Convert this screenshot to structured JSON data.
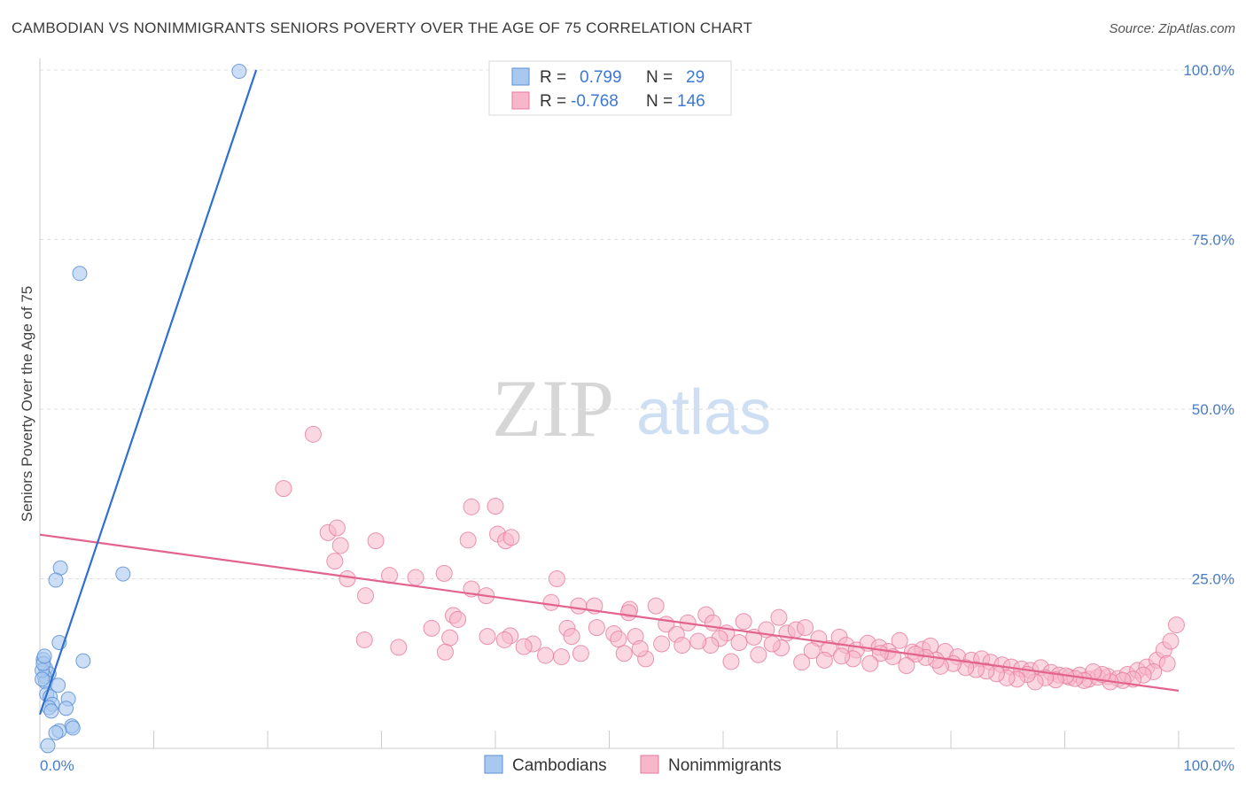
{
  "title": "CAMBODIAN VS NONIMMIGRANTS SENIORS POVERTY OVER THE AGE OF 75 CORRELATION CHART",
  "source": "Source: ZipAtlas.com",
  "watermark": {
    "part1": "ZIP",
    "part2": "atlas"
  },
  "colors": {
    "cambodian_fill": "#a9c8ef",
    "cambodian_stroke": "#5b8fd6",
    "cambodian_line": "#2f6fd0",
    "nonimm_fill": "#f7b6ca",
    "nonimm_stroke": "#e67a9e",
    "nonimm_line": "#e2638e",
    "tick": "#4a7cc4",
    "grid": "#dddddd"
  },
  "legend": {
    "r_label": "R =",
    "n_label": "N =",
    "rows": [
      {
        "r": "0.799",
        "n": "29"
      },
      {
        "r": "-0.768",
        "n": "146"
      }
    ]
  },
  "chart_data": {
    "type": "scatter",
    "title": "CAMBODIAN VS NONIMMIGRANTS SENIORS POVERTY OVER THE AGE OF 75 CORRELATION CHART",
    "xlabel": "",
    "ylabel": "Seniors Poverty Over the Age of 75",
    "xlim": [
      0,
      100
    ],
    "ylim": [
      0,
      100
    ],
    "x_tick_labels": [
      "0.0%",
      "100.0%"
    ],
    "y_tick_labels": [
      "100.0%",
      "75.0%",
      "50.0%",
      "25.0%"
    ],
    "y_tick_values": [
      100,
      75,
      50,
      25
    ],
    "legend_placement": "top-center",
    "series": [
      {
        "name": "Cambodians",
        "r": 0.799,
        "n": 29,
        "trend": {
          "x0": 0.0,
          "y0": 5.0,
          "x1": 19.0,
          "y1": 100.0
        },
        "points": [
          [
            17.5,
            99.8
          ],
          [
            3.5,
            70.0
          ],
          [
            1.8,
            26.6
          ],
          [
            1.4,
            24.8
          ],
          [
            7.3,
            25.7
          ],
          [
            1.7,
            15.6
          ],
          [
            3.8,
            12.9
          ],
          [
            0.3,
            13.1
          ],
          [
            0.5,
            11.8
          ],
          [
            0.8,
            11.0
          ],
          [
            0.4,
            10.6
          ],
          [
            0.5,
            9.8
          ],
          [
            1.6,
            9.3
          ],
          [
            0.6,
            8.0
          ],
          [
            0.9,
            7.6
          ],
          [
            1.1,
            6.5
          ],
          [
            2.5,
            7.3
          ],
          [
            0.8,
            6.0
          ],
          [
            1.0,
            5.5
          ],
          [
            2.3,
            5.9
          ],
          [
            2.8,
            3.3
          ],
          [
            2.9,
            3.0
          ],
          [
            1.7,
            2.6
          ],
          [
            1.4,
            2.3
          ],
          [
            0.7,
            0.4
          ],
          [
            0.2,
            11.5
          ],
          [
            0.3,
            12.5
          ],
          [
            0.2,
            10.2
          ],
          [
            0.4,
            13.6
          ]
        ]
      },
      {
        "name": "Nonimmigrants",
        "r": -0.768,
        "n": 146,
        "trend": {
          "x0": 0.0,
          "y0": 31.5,
          "x1": 100.0,
          "y1": 8.5
        },
        "points": [
          [
            24.0,
            46.3
          ],
          [
            21.4,
            38.3
          ],
          [
            37.9,
            35.6
          ],
          [
            40.0,
            35.7
          ],
          [
            25.3,
            31.8
          ],
          [
            26.1,
            32.5
          ],
          [
            26.4,
            29.9
          ],
          [
            29.5,
            30.6
          ],
          [
            37.6,
            30.7
          ],
          [
            40.2,
            31.6
          ],
          [
            40.9,
            30.6
          ],
          [
            41.4,
            31.1
          ],
          [
            25.9,
            27.6
          ],
          [
            27.0,
            25.0
          ],
          [
            30.7,
            25.5
          ],
          [
            33.0,
            25.2
          ],
          [
            35.5,
            25.8
          ],
          [
            37.9,
            23.5
          ],
          [
            39.2,
            22.5
          ],
          [
            28.6,
            22.5
          ],
          [
            45.4,
            25.0
          ],
          [
            44.9,
            21.5
          ],
          [
            47.3,
            21.0
          ],
          [
            48.7,
            21.0
          ],
          [
            51.8,
            20.5
          ],
          [
            54.1,
            21.0
          ],
          [
            51.7,
            20.0
          ],
          [
            36.3,
            19.6
          ],
          [
            36.7,
            19.0
          ],
          [
            34.4,
            17.7
          ],
          [
            28.5,
            16.0
          ],
          [
            36.0,
            16.3
          ],
          [
            39.3,
            16.5
          ],
          [
            41.3,
            16.6
          ],
          [
            46.3,
            17.7
          ],
          [
            46.7,
            16.5
          ],
          [
            48.9,
            17.8
          ],
          [
            50.4,
            16.9
          ],
          [
            52.3,
            16.5
          ],
          [
            55.0,
            18.3
          ],
          [
            55.9,
            16.8
          ],
          [
            56.9,
            18.5
          ],
          [
            58.5,
            19.7
          ],
          [
            59.1,
            18.5
          ],
          [
            60.3,
            17.0
          ],
          [
            61.8,
            18.7
          ],
          [
            62.7,
            16.4
          ],
          [
            63.8,
            17.5
          ],
          [
            64.9,
            19.3
          ],
          [
            65.6,
            17.0
          ],
          [
            66.4,
            17.5
          ],
          [
            67.2,
            17.8
          ],
          [
            68.4,
            16.2
          ],
          [
            70.2,
            16.4
          ],
          [
            69.3,
            14.7
          ],
          [
            70.8,
            15.2
          ],
          [
            71.7,
            14.5
          ],
          [
            72.7,
            15.5
          ],
          [
            73.7,
            14.9
          ],
          [
            74.5,
            14.3
          ],
          [
            75.5,
            15.9
          ],
          [
            76.6,
            14.2
          ],
          [
            77.5,
            14.6
          ],
          [
            78.2,
            15.1
          ],
          [
            79.5,
            14.3
          ],
          [
            80.6,
            13.5
          ],
          [
            81.8,
            13.0
          ],
          [
            82.7,
            13.2
          ],
          [
            83.5,
            12.7
          ],
          [
            84.5,
            12.3
          ],
          [
            85.3,
            12.0
          ],
          [
            86.2,
            11.7
          ],
          [
            87.0,
            11.5
          ],
          [
            87.9,
            11.9
          ],
          [
            88.8,
            11.2
          ],
          [
            89.5,
            10.8
          ],
          [
            90.4,
            10.5
          ],
          [
            91.3,
            10.8
          ],
          [
            92.1,
            10.2
          ],
          [
            92.9,
            10.5
          ],
          [
            93.8,
            10.6
          ],
          [
            94.7,
            10.3
          ],
          [
            95.5,
            10.9
          ],
          [
            96.4,
            11.5
          ],
          [
            97.2,
            12.0
          ],
          [
            98.1,
            13.0
          ],
          [
            98.7,
            14.5
          ],
          [
            99.3,
            15.8
          ],
          [
            99.8,
            18.2
          ],
          [
            99.0,
            12.5
          ],
          [
            97.8,
            11.3
          ],
          [
            96.9,
            10.8
          ],
          [
            96.0,
            10.2
          ],
          [
            95.1,
            10.0
          ],
          [
            94.0,
            9.8
          ],
          [
            93.3,
            10.9
          ],
          [
            92.5,
            11.3
          ],
          [
            91.7,
            10.0
          ],
          [
            90.9,
            10.3
          ],
          [
            90.1,
            10.7
          ],
          [
            89.2,
            10.1
          ],
          [
            88.3,
            10.4
          ],
          [
            87.4,
            9.8
          ],
          [
            86.7,
            10.9
          ],
          [
            85.8,
            10.2
          ],
          [
            84.9,
            10.4
          ],
          [
            84.0,
            11.0
          ],
          [
            83.1,
            11.4
          ],
          [
            82.2,
            11.6
          ],
          [
            81.3,
            11.9
          ],
          [
            80.2,
            12.5
          ],
          [
            79.1,
            12.1
          ],
          [
            78.7,
            13.0
          ],
          [
            77.8,
            13.4
          ],
          [
            76.9,
            13.9
          ],
          [
            76.1,
            12.2
          ],
          [
            74.9,
            13.5
          ],
          [
            73.8,
            14.0
          ],
          [
            72.9,
            12.5
          ],
          [
            71.4,
            13.2
          ],
          [
            70.4,
            13.6
          ],
          [
            68.9,
            13.0
          ],
          [
            67.8,
            14.4
          ],
          [
            66.9,
            12.7
          ],
          [
            65.1,
            14.8
          ],
          [
            64.3,
            15.4
          ],
          [
            63.1,
            13.8
          ],
          [
            61.4,
            15.6
          ],
          [
            60.7,
            12.8
          ],
          [
            59.7,
            16.2
          ],
          [
            58.9,
            15.2
          ],
          [
            57.8,
            15.8
          ],
          [
            56.4,
            15.2
          ],
          [
            54.6,
            15.4
          ],
          [
            53.2,
            13.2
          ],
          [
            52.7,
            14.7
          ],
          [
            51.3,
            14.0
          ],
          [
            50.8,
            16.1
          ],
          [
            47.5,
            14.0
          ],
          [
            45.8,
            13.5
          ],
          [
            44.4,
            13.7
          ],
          [
            43.3,
            15.4
          ],
          [
            42.5,
            15.0
          ],
          [
            40.8,
            16.0
          ],
          [
            35.6,
            14.2
          ],
          [
            31.5,
            14.9
          ]
        ]
      }
    ]
  },
  "bottom_legend": {
    "items": [
      "Cambodians",
      "Nonimmigrants"
    ]
  }
}
